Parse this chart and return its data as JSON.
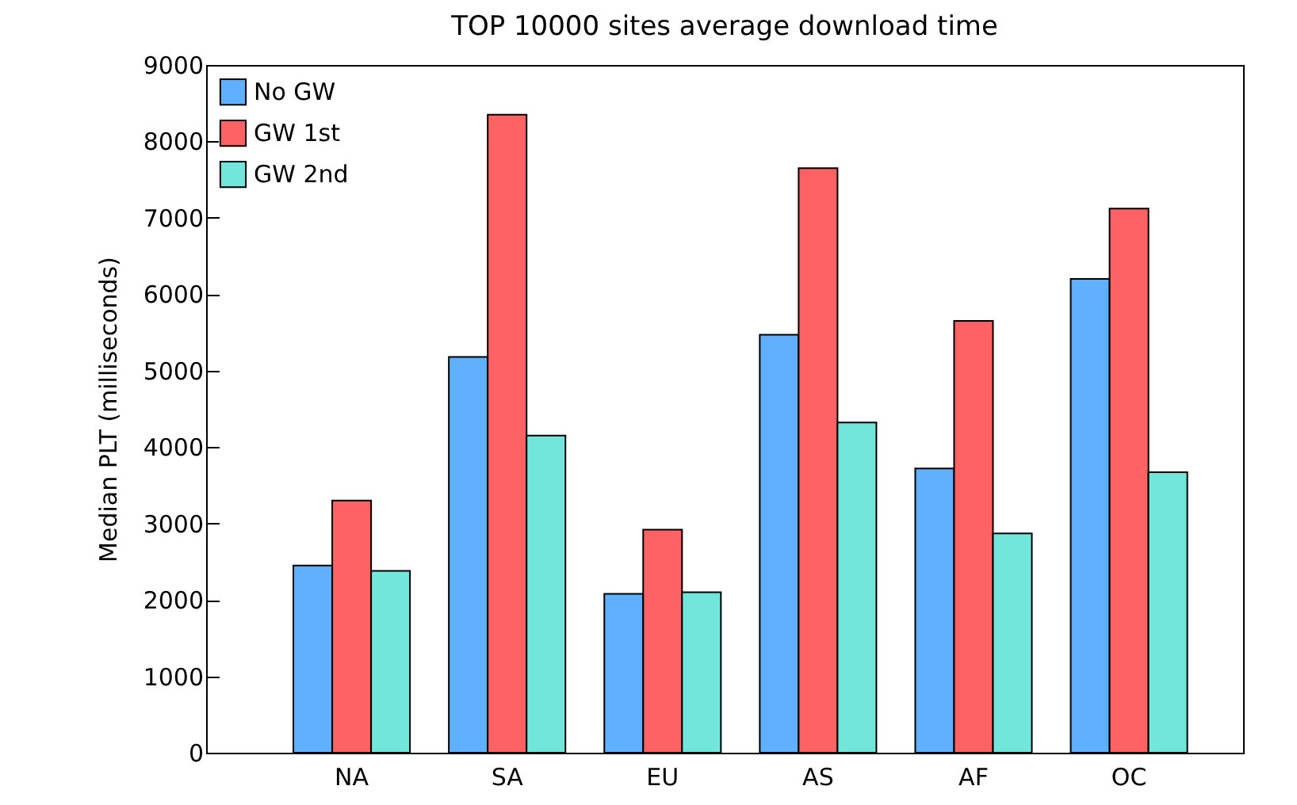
{
  "chart_data": {
    "type": "bar",
    "title": "TOP 10000 sites average download time",
    "ylabel": "Median PLT (milliseconds)",
    "categories": [
      "NA",
      "SA",
      "EU",
      "AS",
      "AF",
      "OC"
    ],
    "series": [
      {
        "name": "No GW",
        "color": "#5fb0ff",
        "values": [
          2450,
          5180,
          2080,
          5470,
          3720,
          6200
        ]
      },
      {
        "name": "GW 1st",
        "color": "#ff6262",
        "values": [
          3300,
          8350,
          2920,
          7650,
          5650,
          7120
        ]
      },
      {
        "name": "GW 2nd",
        "color": "#72e6da",
        "values": [
          2380,
          4150,
          2100,
          4320,
          2870,
          3670
        ]
      }
    ],
    "ylim": [
      0,
      9000
    ],
    "yticks": [
      0,
      1000,
      2000,
      3000,
      4000,
      5000,
      6000,
      7000,
      8000,
      9000
    ],
    "grid": false,
    "legend": "top left"
  }
}
